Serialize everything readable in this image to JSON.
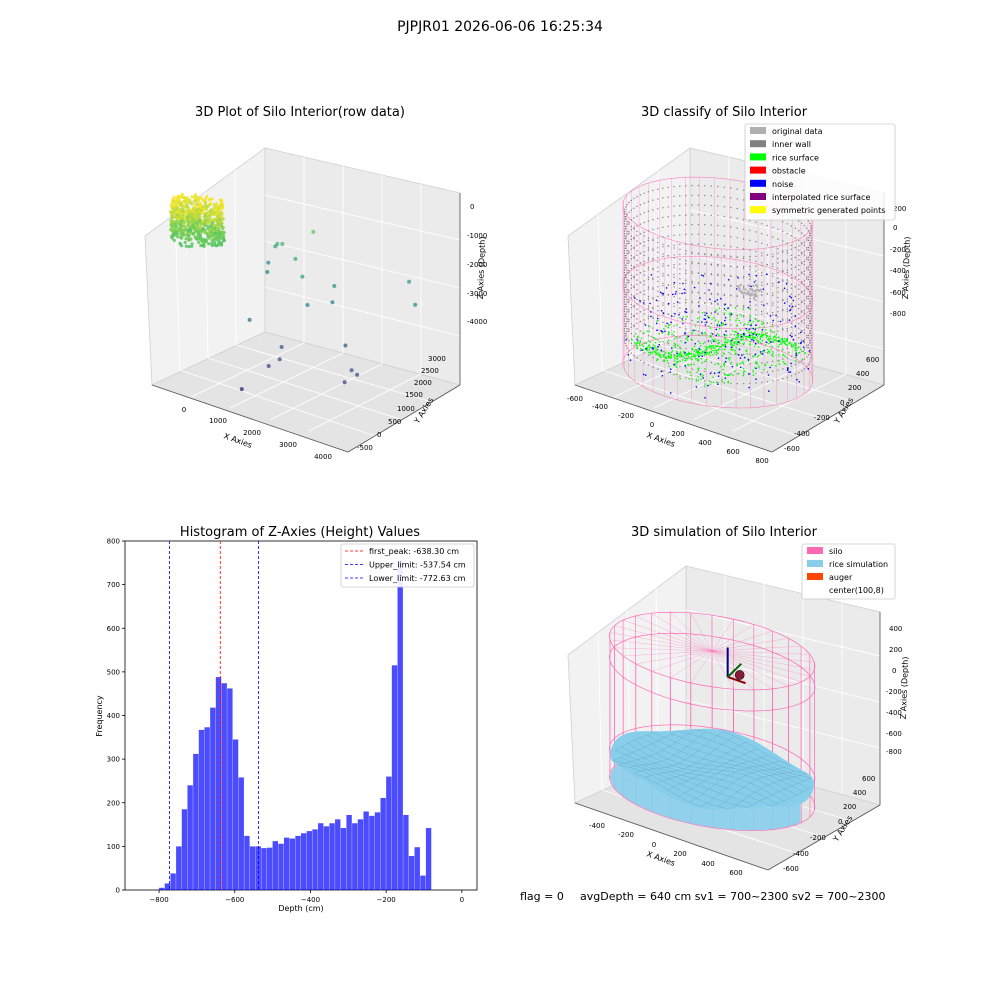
{
  "suptitle": "PJPJR01 2026-06-06 16:25:34",
  "footer": {
    "flag": "flag = 0",
    "stats": "avgDepth = 640 cm  sv1 = 700~2300  sv2 = 700~2300"
  },
  "chart_data": [
    {
      "type": "scatter",
      "title": "3D Plot of Silo Interior(row data)",
      "xlabel": "X Axies",
      "ylabel": "Y Axies",
      "zlabel": "Z Axies (Depth)",
      "x_ticks": [
        "0",
        "1000",
        "2000",
        "3000",
        "4000"
      ],
      "y_ticks": [
        "-500",
        "0",
        "500",
        "1000",
        "1500",
        "2000",
        "2500",
        "3000"
      ],
      "z_ticks": [
        "0",
        "-1000",
        "-2000",
        "-3000",
        "-4000"
      ],
      "xlim": [
        -600,
        4300
      ],
      "ylim": [
        -600,
        3200
      ],
      "zlim": [
        -4500,
        200
      ],
      "colormap": "viridis",
      "cluster": {
        "x_range": [
          -500,
          600
        ],
        "y_range": [
          -500,
          600
        ],
        "z_range": [
          -900,
          0
        ]
      },
      "outliers": [
        {
          "x": 3300,
          "y": 2800,
          "z": -1800
        },
        {
          "x": 3600,
          "y": 2600,
          "z": -2200
        },
        {
          "x": 1500,
          "y": 2000,
          "z": -900
        },
        {
          "x": 2600,
          "y": 1600,
          "z": -3200
        },
        {
          "x": 1800,
          "y": 1400,
          "z": -2400
        },
        {
          "x": 1600,
          "y": 1500,
          "z": -1800
        },
        {
          "x": 1200,
          "y": 1800,
          "z": -1600
        },
        {
          "x": 800,
          "y": 1900,
          "z": -1400
        },
        {
          "x": 600,
          "y": 2000,
          "z": -1500
        },
        {
          "x": 400,
          "y": 2200,
          "z": -1700
        },
        {
          "x": 300,
          "y": 2100,
          "z": -2100
        },
        {
          "x": 200,
          "y": 2200,
          "z": -2400
        },
        {
          "x": 3200,
          "y": 1000,
          "z": -3400
        },
        {
          "x": 3300,
          "y": 1050,
          "z": -3500
        },
        {
          "x": 3100,
          "y": 900,
          "z": -3700
        },
        {
          "x": 800,
          "y": 800,
          "z": -2900
        },
        {
          "x": 1600,
          "y": 800,
          "z": -3300
        },
        {
          "x": 1700,
          "y": 600,
          "z": -3500
        },
        {
          "x": 1500,
          "y": 500,
          "z": -3700
        },
        {
          "x": 1200,
          "y": 0,
          "z": -4200
        },
        {
          "x": 2200,
          "y": 1700,
          "z": -2300
        },
        {
          "x": 2100,
          "y": 1900,
          "z": -2000
        }
      ]
    },
    {
      "type": "scatter",
      "title": "3D classify of Silo Interior",
      "xlabel": "X Axies",
      "ylabel": "Y Axies",
      "zlabel": "Z Axies (Depth)",
      "x_ticks": [
        "-600",
        "-400",
        "-200",
        "0",
        "200",
        "400",
        "600",
        "800"
      ],
      "y_ticks": [
        "-600",
        "-400",
        "-200",
        "0",
        "200",
        "400",
        "600"
      ],
      "z_ticks": [
        "200",
        "0",
        "-200",
        "-400",
        "-600",
        "-800"
      ],
      "xlim": [
        -650,
        850
      ],
      "ylim": [
        -650,
        650
      ],
      "zlim": [
        -900,
        300
      ],
      "silo": {
        "radius": 600,
        "z_top": 200,
        "z_bottom": -800
      },
      "legend": [
        {
          "label": "original data",
          "color": "#b0b0b0"
        },
        {
          "label": "inner wall",
          "color": "#808080"
        },
        {
          "label": "rice surface",
          "color": "#00ff00"
        },
        {
          "label": "obstacle",
          "color": "#ff0000"
        },
        {
          "label": "noise",
          "color": "#0000ff"
        },
        {
          "label": "interpolated rice surface",
          "color": "#800080"
        },
        {
          "label": "symmetric generated points",
          "color": "#ffff00"
        }
      ]
    },
    {
      "type": "bar",
      "title": "Histogram of Z-Axies (Height) Values",
      "xlabel": "Depth (cm)",
      "ylabel": "Frequency",
      "xlim": [
        -890,
        40
      ],
      "ylim": [
        0,
        800
      ],
      "x_ticks": [
        -800,
        -600,
        -400,
        -200,
        0
      ],
      "y_ticks": [
        0,
        100,
        200,
        300,
        400,
        500,
        600,
        700,
        800
      ],
      "bar_color": "#0000ff",
      "bin_start": -800,
      "bin_width": 15,
      "values": [
        5,
        15,
        38,
        100,
        185,
        240,
        312,
        367,
        373,
        418,
        488,
        474,
        462,
        345,
        258,
        124,
        100,
        100,
        96,
        97,
        112,
        106,
        120,
        118,
        124,
        130,
        135,
        139,
        153,
        146,
        153,
        162,
        142,
        172,
        153,
        162,
        180,
        170,
        178,
        211,
        260,
        515,
        755,
        172,
        78,
        98,
        33,
        142
      ],
      "lines": [
        {
          "label": "first_peak: -638.30 cm",
          "x": -638.3,
          "color": "#ff0000"
        },
        {
          "label": "Upper_limit: -537.54 cm",
          "x": -537.54,
          "color": "#0000ff"
        },
        {
          "label": "Lower_limit: -772.63 cm",
          "x": -772.63,
          "color": "#0000ff"
        }
      ]
    },
    {
      "type": "area",
      "title": "3D simulation of Silo Interior",
      "xlabel": "X Axies",
      "ylabel": "Y Axies",
      "zlabel": "Z Axies (Depth)",
      "x_ticks": [
        "-400",
        "-200",
        "0",
        "200",
        "400",
        "600"
      ],
      "y_ticks": [
        "-600",
        "-400",
        "-200",
        "0",
        "200",
        "400",
        "600"
      ],
      "z_ticks": [
        "400",
        "200",
        "0",
        "-200",
        "-400",
        "-600",
        "-800"
      ],
      "xlim": [
        -550,
        750
      ],
      "ylim": [
        -650,
        650
      ],
      "zlim": [
        -900,
        450
      ],
      "silo": {
        "radius": 600,
        "z_top": 200,
        "z_bottom": -800
      },
      "rice_surface_depth": -640,
      "auger_center": {
        "x": 100,
        "y": 8
      },
      "legend": [
        {
          "label": "silo",
          "color": "#ff69b4"
        },
        {
          "label": "rice simulation",
          "color": "#87ceeb"
        },
        {
          "label": "auger",
          "color": "#ff4500"
        },
        {
          "label": "center(100,8)",
          "color": "#ffffff"
        }
      ]
    }
  ]
}
